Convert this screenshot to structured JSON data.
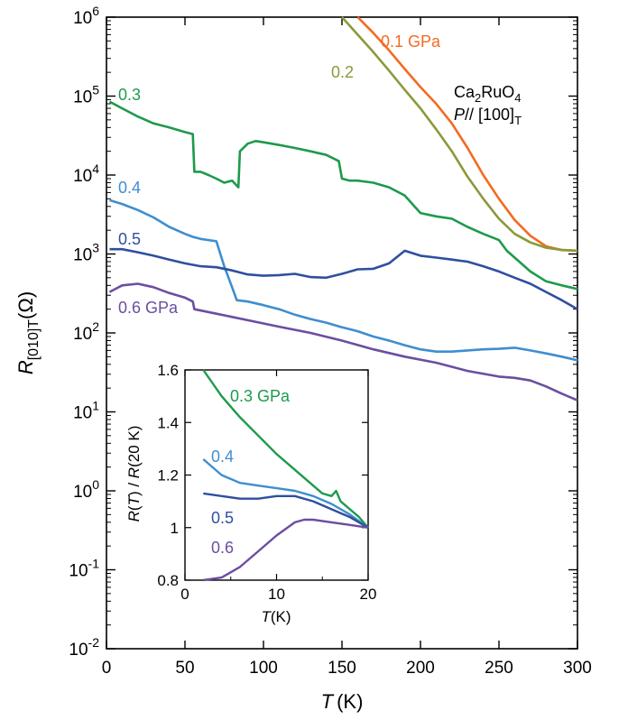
{
  "chart_data": [
    {
      "type": "line",
      "xscale": "linear",
      "yscale": "log",
      "xlim": [
        0,
        300
      ],
      "ylim": [
        0.01,
        1000000
      ],
      "xticks": [
        0,
        50,
        100,
        150,
        200,
        250,
        300
      ],
      "xticklabels": [
        "0",
        "50",
        "100",
        "150",
        "200",
        "250",
        "300"
      ],
      "yticks": [
        0.01,
        0.1,
        1,
        10,
        100,
        1000,
        10000,
        100000,
        1000000
      ],
      "ytick_bases": [
        "10",
        "10",
        "10",
        "10",
        "10",
        "10",
        "10",
        "10",
        "10"
      ],
      "ytick_exps": [
        "-2",
        "-1",
        "0",
        "1",
        "2",
        "3",
        "4",
        "5",
        "6"
      ],
      "xlabel": {
        "var": "T",
        "unit": "(K)"
      },
      "ylabel": {
        "var": "R",
        "sub": "[010]T",
        "unit": "(Ω)"
      },
      "annotation": {
        "formula_a": "Ca",
        "formula_b": "2",
        "formula_c": "RuO",
        "formula_d": "4",
        "p_var": "P",
        "p_rest": "// [100]",
        "p_sub": "T"
      },
      "series": [
        {
          "name": "0.1 GPa",
          "color": "#f26b21",
          "x": [
            160,
            170,
            180,
            190,
            200,
            210,
            220,
            230,
            240,
            250,
            260,
            270,
            280,
            290,
            300
          ],
          "y": [
            1000000,
            630000,
            380000,
            220000,
            130000,
            80000,
            45000,
            22000,
            10000,
            5000,
            2700,
            1700,
            1250,
            1120,
            1100
          ]
        },
        {
          "name": "0.2",
          "color": "#8a9a3a",
          "x": [
            150,
            160,
            170,
            180,
            190,
            200,
            210,
            220,
            230,
            240,
            250,
            260,
            270,
            280,
            290,
            300
          ],
          "y": [
            1000000,
            600000,
            360000,
            210000,
            120000,
            70000,
            38000,
            20000,
            9500,
            5000,
            2800,
            1800,
            1400,
            1200,
            1130,
            1100
          ]
        },
        {
          "name": "0.3",
          "color": "#1e9a4c",
          "x": [
            2,
            10,
            20,
            30,
            40,
            50,
            55,
            56,
            60,
            65,
            70,
            75,
            80,
            84,
            85,
            90,
            95,
            100,
            110,
            120,
            130,
            140,
            148,
            150,
            155,
            160,
            170,
            180,
            190,
            200,
            210,
            220,
            230,
            240,
            250,
            255,
            260,
            270,
            280,
            290,
            300
          ],
          "y": [
            85000,
            70000,
            55000,
            45000,
            40000,
            35000,
            33000,
            11000,
            11000,
            10000,
            9000,
            8000,
            8500,
            7000,
            20000,
            25000,
            27000,
            26000,
            24000,
            22000,
            20000,
            18000,
            15000,
            9000,
            8500,
            8500,
            8000,
            7000,
            5500,
            3300,
            3000,
            2800,
            2200,
            1800,
            1500,
            1100,
            900,
            600,
            450,
            400,
            360
          ]
        },
        {
          "name": "0.4",
          "color": "#3e8ed0",
          "x": [
            2,
            10,
            20,
            30,
            40,
            50,
            55,
            60,
            70,
            75,
            80,
            83,
            90,
            100,
            110,
            120,
            130,
            140,
            150,
            160,
            170,
            180,
            190,
            200,
            210,
            220,
            230,
            240,
            250,
            260,
            270,
            280,
            290,
            300
          ],
          "y": [
            4800,
            4300,
            3600,
            2900,
            2200,
            1800,
            1650,
            1550,
            1450,
            700,
            380,
            260,
            250,
            225,
            200,
            170,
            150,
            135,
            118,
            105,
            90,
            80,
            70,
            62,
            58,
            58,
            60,
            62,
            63,
            65,
            60,
            55,
            50,
            45
          ]
        },
        {
          "name": "0.5",
          "color": "#2f4f9f",
          "x": [
            2,
            10,
            20,
            30,
            40,
            50,
            60,
            70,
            80,
            90,
            100,
            110,
            120,
            130,
            140,
            150,
            160,
            170,
            180,
            190,
            200,
            210,
            220,
            230,
            240,
            250,
            260,
            270,
            280,
            290,
            300
          ],
          "y": [
            1150,
            1150,
            1050,
            950,
            850,
            760,
            700,
            680,
            620,
            550,
            530,
            540,
            560,
            510,
            500,
            560,
            640,
            650,
            760,
            1100,
            950,
            900,
            850,
            800,
            700,
            600,
            500,
            420,
            330,
            260,
            200
          ]
        },
        {
          "name": "0.6 GPa",
          "color": "#6b4ea0",
          "x": [
            2,
            10,
            20,
            30,
            40,
            50,
            55,
            56,
            70,
            90,
            110,
            130,
            150,
            170,
            190,
            210,
            230,
            250,
            260,
            270,
            280,
            290,
            300
          ],
          "y": [
            330,
            400,
            420,
            380,
            320,
            280,
            250,
            200,
            175,
            145,
            120,
            100,
            80,
            62,
            50,
            42,
            33,
            28,
            27,
            25,
            21,
            17,
            14
          ]
        }
      ],
      "series_labels": [
        "0.1 GPa",
        "0.2",
        "0.3",
        "0.4",
        "0.5",
        "0.6 GPa"
      ]
    },
    {
      "type": "line",
      "inset": true,
      "xlim": [
        0,
        20
      ],
      "ylim": [
        0.8,
        1.6
      ],
      "xticks": [
        0,
        10,
        20
      ],
      "xticklabels": [
        "0",
        "10",
        "20"
      ],
      "yticks": [
        0.8,
        1,
        1.2,
        1.4,
        1.6
      ],
      "yticklabels": [
        "0.8",
        "1",
        "1.2",
        "1.4",
        "1.6"
      ],
      "xlabel": {
        "var": "T",
        "unit": "(K)"
      },
      "ylabel": {
        "a": "R",
        "b": "(",
        "c": "T",
        "d": ") / ",
        "e": "R",
        "f": "(20 K)"
      },
      "series": [
        {
          "name": "0.3 GPa",
          "color": "#1e9a4c",
          "x": [
            2,
            4,
            6,
            8,
            10,
            12,
            14,
            15,
            16,
            16.5,
            17,
            18,
            19,
            20
          ],
          "y": [
            1.6,
            1.5,
            1.42,
            1.35,
            1.28,
            1.22,
            1.16,
            1.13,
            1.12,
            1.14,
            1.1,
            1.07,
            1.04,
            1.0
          ]
        },
        {
          "name": "0.4",
          "color": "#3e8ed0",
          "x": [
            2,
            4,
            6,
            8,
            10,
            12,
            14,
            16,
            18,
            20
          ],
          "y": [
            1.26,
            1.2,
            1.17,
            1.16,
            1.15,
            1.14,
            1.12,
            1.09,
            1.05,
            1.0
          ]
        },
        {
          "name": "0.5",
          "color": "#2f4f9f",
          "x": [
            2,
            4,
            6,
            8,
            10,
            12,
            14,
            16,
            18,
            20
          ],
          "y": [
            1.13,
            1.12,
            1.11,
            1.11,
            1.12,
            1.12,
            1.1,
            1.07,
            1.04,
            1.0
          ]
        },
        {
          "name": "0.6",
          "color": "#6b4ea0",
          "x": [
            2,
            4,
            6,
            8,
            10,
            12,
            13,
            14,
            16,
            18,
            20
          ],
          "y": [
            0.8,
            0.81,
            0.85,
            0.91,
            0.97,
            1.02,
            1.03,
            1.03,
            1.02,
            1.01,
            1.0
          ]
        }
      ],
      "series_labels": [
        "0.3 GPa",
        "0.4",
        "0.5",
        "0.6"
      ]
    }
  ]
}
